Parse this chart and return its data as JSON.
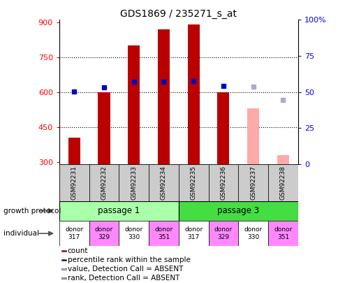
{
  "title": "GDS1869 / 235271_s_at",
  "samples": [
    "GSM92231",
    "GSM92232",
    "GSM92233",
    "GSM92234",
    "GSM92235",
    "GSM92236",
    "GSM92237",
    "GSM92238"
  ],
  "count_values": [
    405,
    600,
    800,
    870,
    890,
    600,
    null,
    null
  ],
  "count_absent_values": [
    null,
    null,
    null,
    null,
    null,
    null,
    530,
    330
  ],
  "percentile_present": [
    601,
    620,
    645,
    645,
    648,
    625,
    null,
    null
  ],
  "percentile_absent": [
    null,
    null,
    null,
    null,
    null,
    null,
    622,
    565
  ],
  "ylim_left": [
    290,
    910
  ],
  "ylim_right": [
    0,
    100
  ],
  "yticks_left": [
    300,
    450,
    600,
    750,
    900
  ],
  "yticks_right": [
    0,
    25,
    50,
    75,
    100
  ],
  "bar_width": 0.4,
  "count_color": "#bb0000",
  "absent_count_color": "#ffaaaa",
  "percentile_color": "#0000bb",
  "percentile_absent_color": "#aaaacc",
  "growth_protocol_groups": [
    {
      "label": "passage 1",
      "start": 0,
      "end": 4,
      "color": "#aaffaa"
    },
    {
      "label": "passage 3",
      "start": 4,
      "end": 8,
      "color": "#44dd44"
    }
  ],
  "individual_labels": [
    {
      "label": "donor\n317",
      "bg": "#ffffff"
    },
    {
      "label": "donor\n329",
      "bg": "#ff88ff"
    },
    {
      "label": "donor\n330",
      "bg": "#ffffff"
    },
    {
      "label": "donor\n351",
      "bg": "#ff88ff"
    },
    {
      "label": "donor\n317",
      "bg": "#ffffff"
    },
    {
      "label": "donor\n329",
      "bg": "#ff88ff"
    },
    {
      "label": "donor\n330",
      "bg": "#ffffff"
    },
    {
      "label": "donor\n351",
      "bg": "#ff88ff"
    }
  ],
  "sample_bg_color": "#cccccc",
  "fig_bg_color": "#ffffff",
  "grid_yticks": [
    450,
    600,
    750
  ],
  "legend_items": [
    {
      "color": "#bb0000",
      "label": "count"
    },
    {
      "color": "#0000bb",
      "label": "percentile rank within the sample"
    },
    {
      "color": "#ffaaaa",
      "label": "value, Detection Call = ABSENT"
    },
    {
      "color": "#aaaacc",
      "label": "rank, Detection Call = ABSENT"
    }
  ]
}
